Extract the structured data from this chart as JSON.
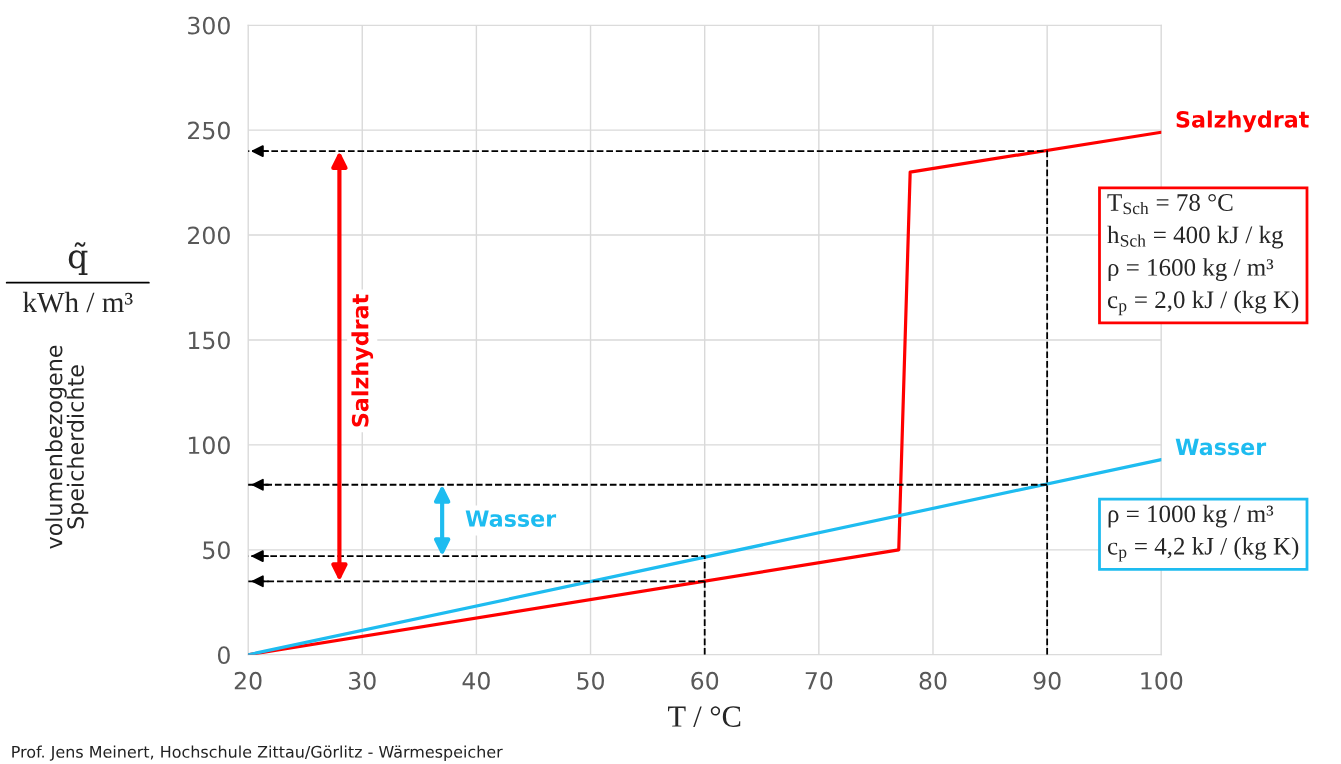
{
  "chart_data": {
    "type": "line",
    "xlabel": "T / °C",
    "ylabel": "volumenbezogene\nSpeicherdichte",
    "xlim": [
      20,
      100
    ],
    "xticks": [
      20,
      30,
      40,
      50,
      60,
      70,
      80,
      90,
      100
    ],
    "ylim": [
      0,
      300
    ],
    "yticks": [
      0,
      50,
      100,
      150,
      200,
      250,
      300
    ],
    "grid": true,
    "legend": false,
    "series": [
      {
        "name": "Salzhydrat",
        "color": "#ff0000",
        "x": [
          20,
          77,
          78,
          100
        ],
        "values": [
          0,
          50,
          230,
          249
        ]
      },
      {
        "name": "Wasser",
        "color": "#1ebcf0",
        "x": [
          20,
          100
        ],
        "values": [
          0,
          93
        ]
      },
      {
        "color": "#000000",
        "line_style": "dashed",
        "x": [
          60,
          60,
          20
        ],
        "values": [
          0,
          47,
          47
        ]
      },
      {
        "color": "#000000",
        "line_style": "dashed",
        "x": [
          60,
          20
        ],
        "values": [
          35,
          35
        ]
      },
      {
        "color": "#000000",
        "line_style": "dashed",
        "x": [
          90,
          90,
          20
        ],
        "values": [
          0,
          240,
          240
        ]
      },
      {
        "color": "#000000",
        "line_style": "dashed",
        "x": [
          90,
          20
        ],
        "values": [
          81,
          81
        ]
      }
    ],
    "annotations": [
      "Salzhydrat",
      "Wasser",
      "T$_{Sch}$ = 78 °C\nh$_{Sch}$ = 400 kJ / kg\nρ = 1600 kg / m³\nc$_{p}$ = 2,0 kJ / (kg K)",
      "ρ = 1000 kg / m³\nc$_{p}$ = 4,2 kJ / (kg K)",
      "Prof. Jens Meinert, Hochschule Zittau/Görlitz - Wärmespeicher",
      "q̃",
      "kWh / m³"
    ]
  }
}
